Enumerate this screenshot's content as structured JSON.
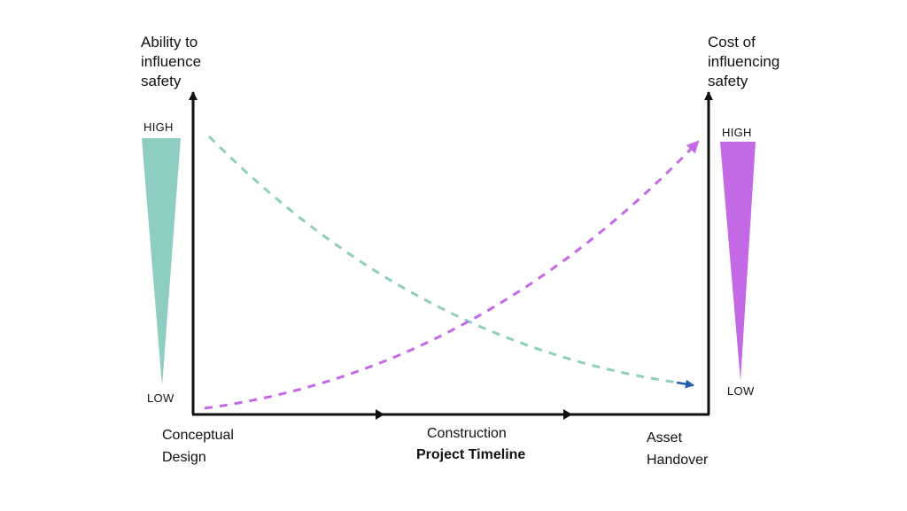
{
  "left_axis": {
    "title": "Ability to\ninfluence\nsafety",
    "high": "HIGH",
    "low": "LOW",
    "color": "#8ecdc2"
  },
  "right_axis": {
    "title": "Cost of\ninfluencing\nsafety",
    "high": "HIGH",
    "low": "LOW",
    "color": "#c469e6"
  },
  "timeline": {
    "stages": [
      "Conceptual\nDesign",
      "Construction",
      "Asset\nHandover"
    ],
    "title": "Project Timeline"
  },
  "curves": {
    "ability_color": "#8ecdc2",
    "cost_color": "#c469e6",
    "arrow_color": "#1f5fa8"
  }
}
